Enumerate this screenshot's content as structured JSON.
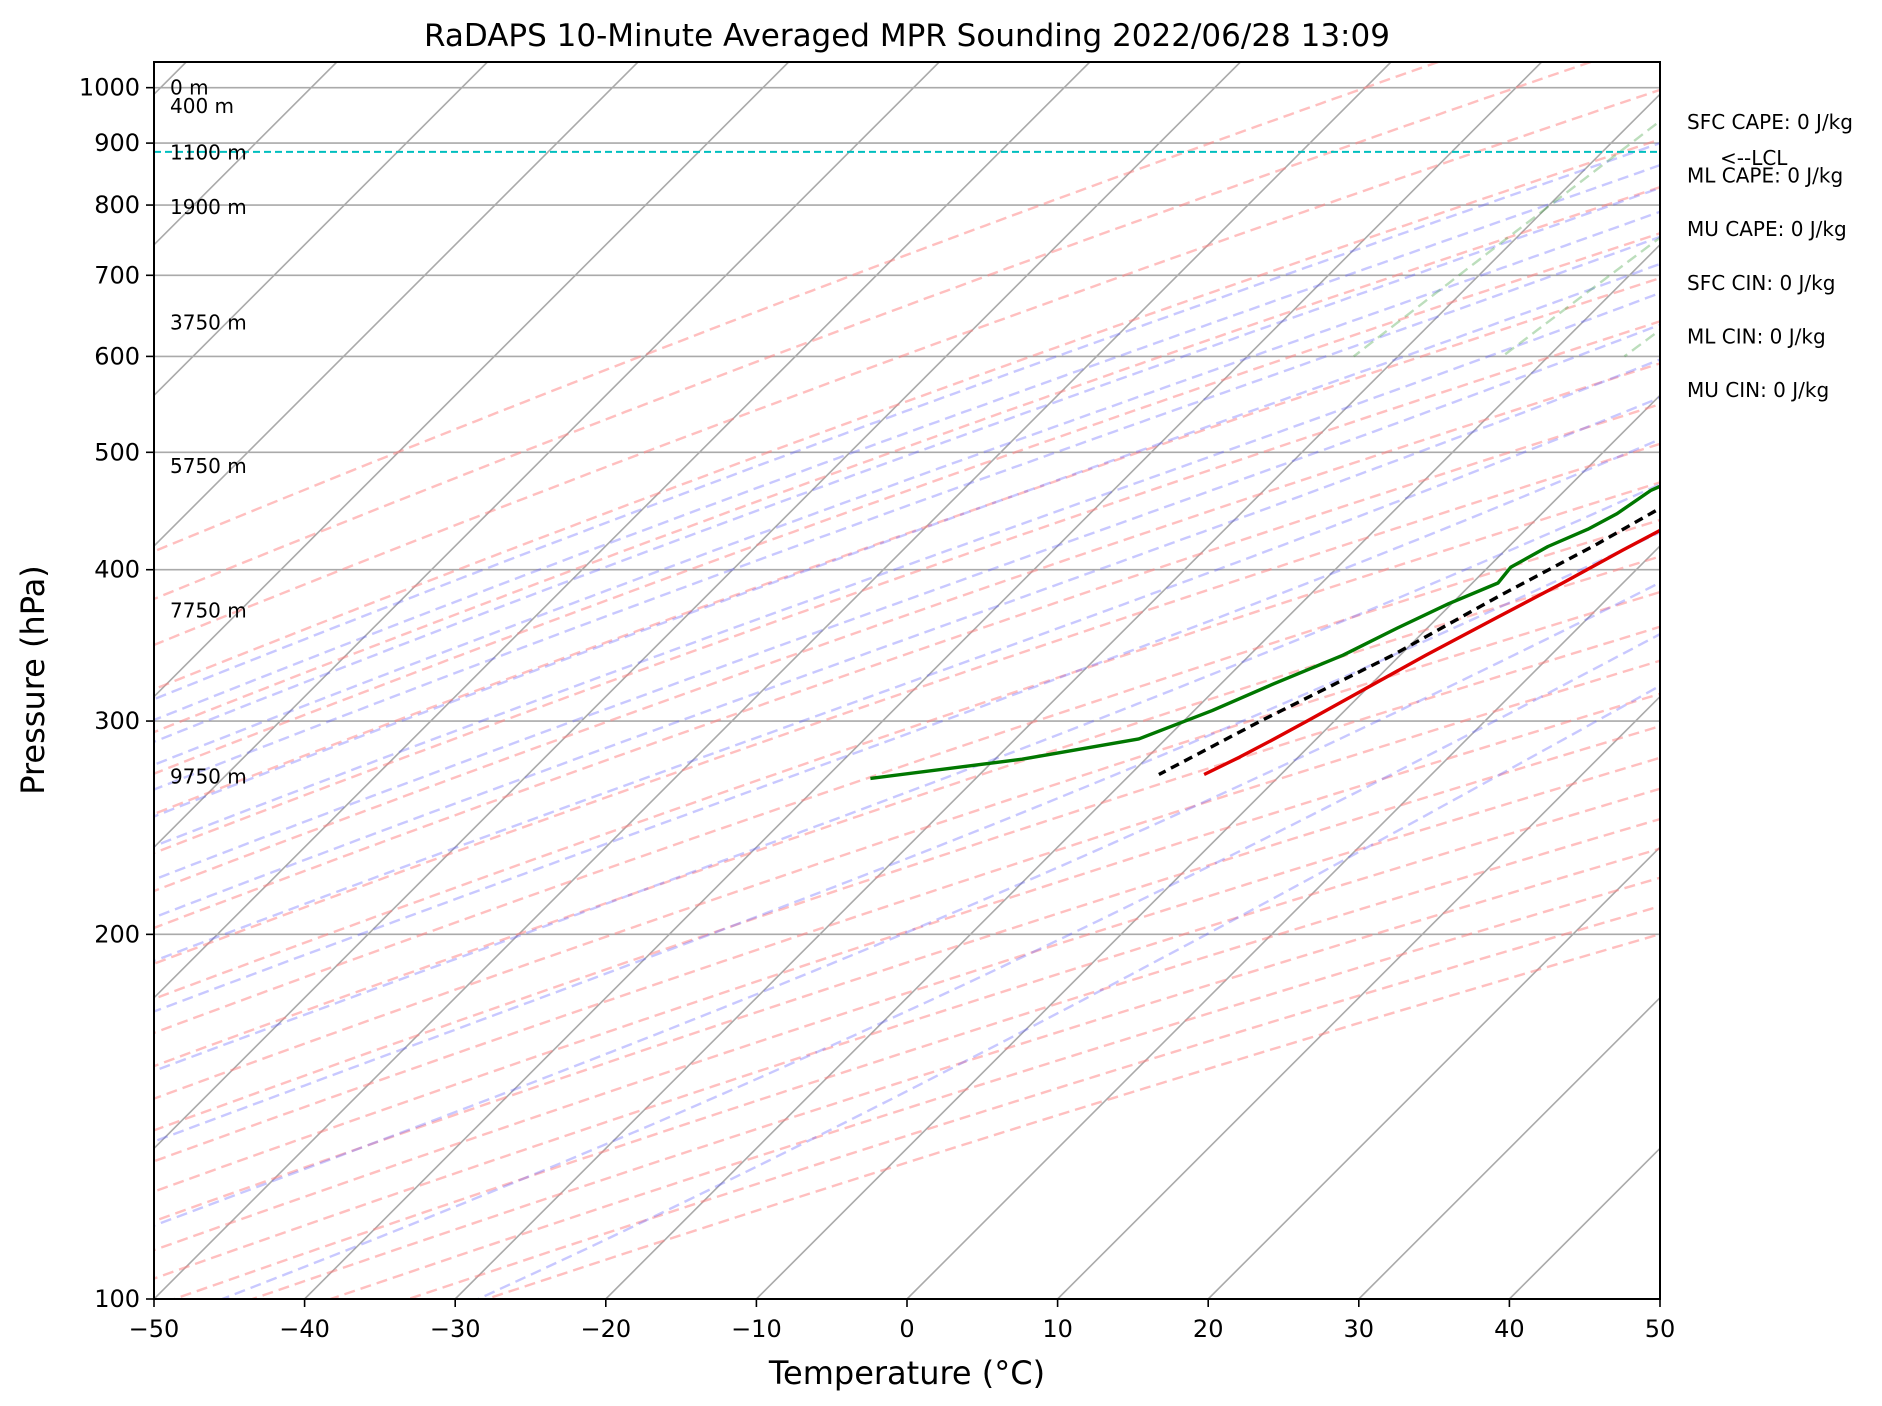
{
  "chart_data": {
    "type": "line",
    "title": "RaDAPS 10-Minute Averaged MPR Sounding 2022/06/28 13:09",
    "xlabel": "Temperature (°C)",
    "ylabel": "Pressure (hPa)",
    "xlim": [
      -50,
      50
    ],
    "ylim": [
      1050,
      100
    ],
    "y_scale": "log",
    "x_ticks": [
      "−50",
      "−40",
      "−30",
      "−20",
      "−10",
      "0",
      "10",
      "20",
      "30",
      "40",
      "50"
    ],
    "y_ticks": [
      "100",
      "200",
      "300",
      "400",
      "500",
      "600",
      "700",
      "800",
      "900",
      "1000"
    ],
    "grid": true,
    "skew": "skew-T log-P",
    "height_labels": [
      {
        "text": "9750 m",
        "p": 270
      },
      {
        "text": "7750 m",
        "p": 370
      },
      {
        "text": "5750 m",
        "p": 487
      },
      {
        "text": "3750 m",
        "p": 640
      },
      {
        "text": "1900 m",
        "p": 797
      },
      {
        "text": "1100 m",
        "p": 884
      },
      {
        "text": "400 m",
        "p": 966
      },
      {
        "text": "0 m",
        "p": 1000
      }
    ],
    "indices": [
      "SFC CAPE: 0 J/kg",
      "ML CAPE: 0 J/kg",
      "MU CAPE: 0 J/kg",
      "SFC CIN: 0 J/kg",
      "ML CIN: 0 J/kg",
      "MU CIN: 0 J/kg"
    ],
    "lcl": {
      "label": "<--LCL",
      "p": 885
    },
    "series": [
      {
        "color": "#dd0000",
        "style": "solid",
        "pressure": [
          1000,
          985,
          960,
          930,
          900,
          885,
          870,
          855,
          835,
          815,
          790,
          765,
          740,
          715,
          690,
          670,
          650,
          625,
          600,
          580,
          560,
          540,
          520,
          500,
          480,
          462,
          440,
          415,
          390,
          365,
          340,
          320,
          300,
          290,
          280,
          271
        ],
        "temperature": [
          22.5,
          22.5,
          22.0,
          21.0,
          20.0,
          19.5,
          18.7,
          18.0,
          17.5,
          17.0,
          16.0,
          14.8,
          13.5,
          12.4,
          11.3,
          10.5,
          9.5,
          8.3,
          7.2,
          6.2,
          5.3,
          4.8,
          3.8,
          2.7,
          1.8,
          1.0,
          -0.4,
          -2.2,
          -4.0,
          -6.1,
          -8.3,
          -10.0,
          -11.8,
          -12.8,
          -13.9,
          -15.1
        ]
      },
      {
        "color": "#007700",
        "style": "solid",
        "pressure": [
          1000,
          990,
          975,
          965,
          955,
          940,
          920,
          905,
          890,
          875,
          860,
          848,
          835,
          822,
          808,
          795,
          780,
          765,
          750,
          730,
          705,
          685,
          665,
          650,
          632,
          615,
          597,
          578,
          560,
          542,
          525,
          507,
          488,
          465,
          445,
          432,
          418,
          402,
          390,
          375,
          358,
          340,
          322,
          306,
          290,
          279,
          269
        ],
        "temperature": [
          14.8,
          14.9,
          14.7,
          15.0,
          14.3,
          13.6,
          13.7,
          13.3,
          13.6,
          12.4,
          10.4,
          9.4,
          9.8,
          9.2,
          8.1,
          5.8,
          3.8,
          2.5,
          1.7,
          0.8,
          0.2,
          0.5,
          1.0,
          0.2,
          -0.7,
          -0.6,
          -0.8,
          -1.0,
          -1.0,
          -0.5,
          -0.7,
          -1.0,
          -2.2,
          -4.3,
          -5.0,
          -5.9,
          -7.4,
          -8.5,
          -8.3,
          -10.2,
          -12.0,
          -13.8,
          -16.5,
          -18.8,
          -21.8,
          -28.2,
          -37.0
        ]
      },
      {
        "color": "#000000",
        "style": "dashed",
        "pressure": [
          1000,
          885,
          860,
          800,
          740,
          700,
          650,
          600,
          550,
          500,
          460,
          420,
          380,
          340,
          300,
          271
        ],
        "temperature": [
          23.0,
          15.6,
          14.8,
          12.7,
          10.8,
          9.3,
          7.4,
          5.3,
          3.0,
          0.2,
          -1.9,
          -4.3,
          -7.4,
          -10.5,
          -14.9,
          -18.1
        ]
      }
    ]
  }
}
